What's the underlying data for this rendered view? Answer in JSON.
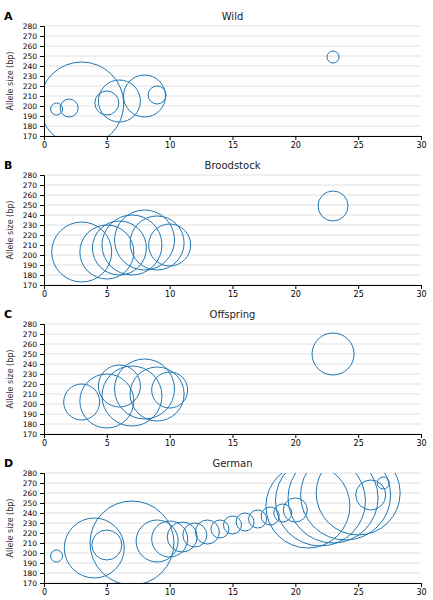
{
  "chart_data": [
    {
      "type": "bubble",
      "title": "Wild",
      "annotations": [
        "A"
      ],
      "ylabel": "Allele size (bp)",
      "x": [
        1,
        2,
        3,
        5,
        6,
        8,
        9,
        23
      ],
      "values": [
        197,
        198,
        202,
        203,
        205,
        210,
        211,
        249
      ],
      "sizes": [
        2,
        3,
        14,
        4,
        7,
        7,
        3,
        2
      ],
      "xlim": [
        0,
        30
      ],
      "xticks": [
        0,
        5,
        10,
        15,
        20,
        25,
        30
      ],
      "ylim": [
        170,
        280
      ],
      "yticks": [
        170,
        180,
        190,
        200,
        210,
        220,
        230,
        240,
        250,
        260,
        270,
        280
      ],
      "grid": true
    },
    {
      "type": "bubble",
      "title": "Broodstock",
      "annotations": [
        "B"
      ],
      "ylabel": "Allele size (bp)",
      "x": [
        3,
        5,
        6,
        7,
        8,
        9,
        10,
        23
      ],
      "values": [
        203,
        203,
        207,
        210,
        215,
        212,
        210,
        249
      ],
      "sizes": [
        10,
        9,
        9,
        10,
        10,
        9,
        7,
        5
      ],
      "xlim": [
        0,
        30
      ],
      "xticks": [
        0,
        5,
        10,
        15,
        20,
        25,
        30
      ],
      "ylim": [
        170,
        280
      ],
      "yticks": [
        170,
        180,
        190,
        200,
        210,
        220,
        230,
        240,
        250,
        260,
        270,
        280
      ],
      "grid": true
    },
    {
      "type": "bubble",
      "title": "Offspring",
      "annotations": [
        "C"
      ],
      "ylabel": "Allele size (bp)",
      "x": [
        3,
        5,
        6,
        7,
        8,
        9,
        10,
        23
      ],
      "values": [
        202,
        203,
        218,
        208,
        215,
        210,
        214,
        250
      ],
      "sizes": [
        6,
        9,
        7,
        10,
        10,
        9,
        6,
        7
      ],
      "xlim": [
        0,
        30
      ],
      "xticks": [
        0,
        5,
        10,
        15,
        20,
        25,
        30
      ],
      "ylim": [
        170,
        280
      ],
      "yticks": [
        170,
        180,
        190,
        200,
        210,
        220,
        230,
        240,
        250,
        260,
        270,
        280
      ],
      "grid": true
    },
    {
      "type": "bubble",
      "title": "German",
      "annotations": [
        "D"
      ],
      "ylabel": "Allele size (bp)",
      "x": [
        1,
        4,
        5,
        7,
        9,
        10,
        11,
        12,
        13,
        14,
        15,
        16,
        17,
        18,
        19,
        20,
        21,
        22,
        23,
        24,
        25,
        26,
        27
      ],
      "values": [
        197,
        205,
        208,
        210,
        212,
        214,
        216,
        218,
        221,
        224,
        228,
        231,
        234,
        237,
        240,
        243,
        247,
        252,
        255,
        258,
        260,
        258,
        270
      ],
      "sizes": [
        2,
        10,
        5,
        14,
        7,
        6,
        5,
        4,
        4,
        3,
        3,
        3,
        3,
        3,
        3,
        4,
        14,
        15,
        15,
        15,
        14,
        5,
        2
      ],
      "xlim": [
        0,
        30
      ],
      "xticks": [
        0,
        5,
        10,
        15,
        20,
        25,
        30
      ],
      "ylim": [
        170,
        280
      ],
      "yticks": [
        170,
        180,
        190,
        200,
        210,
        220,
        230,
        240,
        250,
        260,
        270,
        280
      ],
      "grid": true
    }
  ]
}
